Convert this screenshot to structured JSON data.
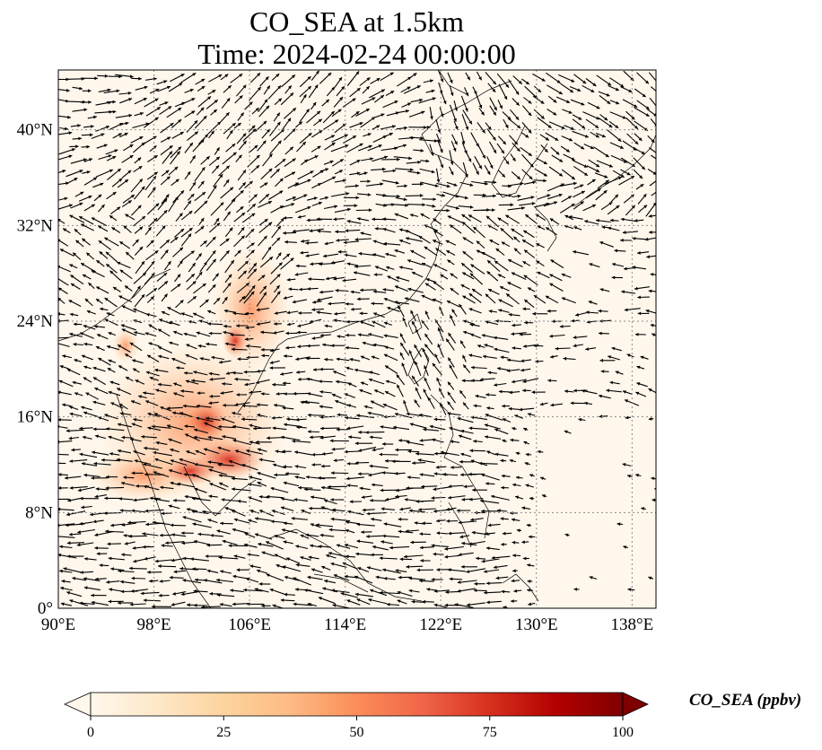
{
  "title": {
    "line1": "CO_SEA at 1.5km",
    "line2": "Time: 2024-02-24 00:00:00"
  },
  "colorbar": {
    "label": "CO_SEA (ppbv)",
    "ticks": [
      "0",
      "25",
      "50",
      "75",
      "100"
    ],
    "colormap": "OrRd",
    "extend": "both",
    "colors": [
      "#fff7ec",
      "#fee8c8",
      "#fdd49e",
      "#fdbb84",
      "#fc8d59",
      "#ef6548",
      "#d7301f",
      "#b30000",
      "#7f0000"
    ]
  },
  "map": {
    "projection": "PlateCarree",
    "gridlines": "dotted",
    "lon_range": [
      90,
      140
    ],
    "lat_range": [
      0,
      45
    ],
    "lon_ticks": [
      "90°E",
      "98°E",
      "106°E",
      "114°E",
      "122°E",
      "130°E",
      "138°E"
    ],
    "lat_ticks": [
      "0°",
      "8°N",
      "16°N",
      "24°N",
      "32°N",
      "40°N"
    ],
    "background_color": "#fff7ec",
    "vector_color": "#000000",
    "vectors": "wind"
  }
}
